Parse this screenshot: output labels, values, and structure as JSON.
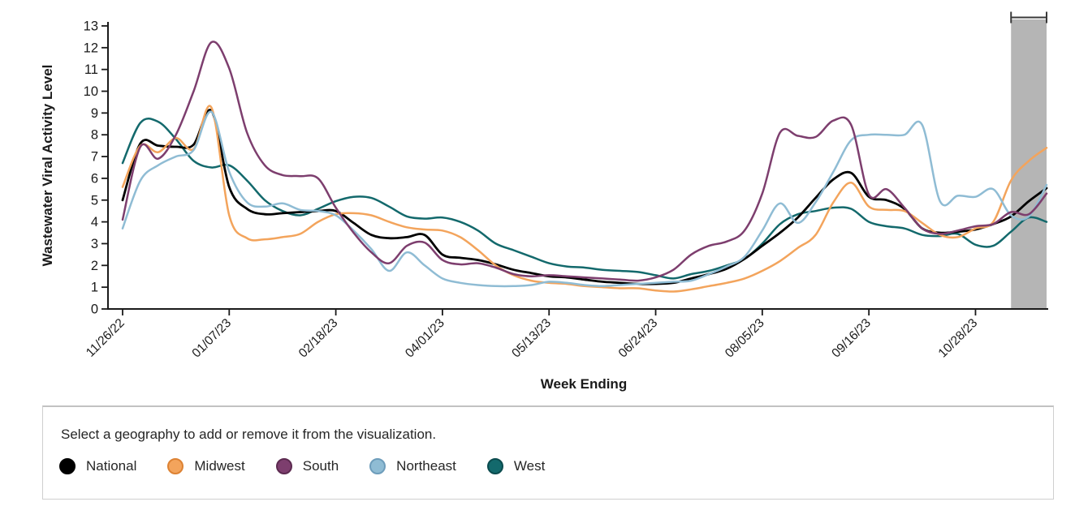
{
  "chart_data": {
    "type": "line",
    "title": "",
    "xlabel": "Week Ending",
    "ylabel": "Wastewater Viral Activity Level",
    "ylim": [
      0,
      13
    ],
    "y_tick_step": 1,
    "grid": false,
    "legend_position": "bottom",
    "x": [
      "11/26/22",
      "12/03/22",
      "12/10/22",
      "12/17/22",
      "12/24/22",
      "12/31/22",
      "01/07/23",
      "01/14/23",
      "01/21/23",
      "01/28/23",
      "02/04/23",
      "02/11/23",
      "02/18/23",
      "02/25/23",
      "03/04/23",
      "03/11/23",
      "03/18/23",
      "03/25/23",
      "04/01/23",
      "04/08/23",
      "04/15/23",
      "04/22/23",
      "04/29/23",
      "05/06/23",
      "05/13/23",
      "05/20/23",
      "05/27/23",
      "06/03/23",
      "06/10/23",
      "06/17/23",
      "06/24/23",
      "07/01/23",
      "07/08/23",
      "07/15/23",
      "07/22/23",
      "07/29/23",
      "08/05/23",
      "08/12/23",
      "08/19/23",
      "08/26/23",
      "09/02/23",
      "09/09/23",
      "09/16/23",
      "09/23/23",
      "09/30/23",
      "10/07/23",
      "10/14/23",
      "10/21/23",
      "10/28/23",
      "11/04/23",
      "11/11/23",
      "11/18/23",
      "11/25/23"
    ],
    "x_tick_labels": [
      "11/26/22",
      "01/07/23",
      "02/18/23",
      "04/01/23",
      "05/13/23",
      "06/24/23",
      "08/05/23",
      "09/16/23",
      "10/28/23"
    ],
    "x_tick_indices": [
      0,
      6,
      12,
      18,
      24,
      30,
      36,
      42,
      48
    ],
    "series": [
      {
        "name": "National",
        "color": "#000000",
        "values": [
          5.0,
          7.6,
          7.5,
          7.45,
          7.55,
          9.1,
          5.6,
          4.6,
          4.35,
          4.4,
          4.45,
          4.5,
          4.5,
          3.95,
          3.4,
          3.25,
          3.3,
          3.4,
          2.5,
          2.35,
          2.25,
          2.05,
          1.8,
          1.65,
          1.5,
          1.45,
          1.35,
          1.25,
          1.2,
          1.15,
          1.15,
          1.2,
          1.4,
          1.6,
          1.85,
          2.3,
          2.9,
          3.5,
          4.2,
          5.1,
          5.95,
          6.25,
          5.15,
          5.0,
          4.6,
          3.7,
          3.5,
          3.55,
          3.65,
          3.9,
          4.25,
          4.95,
          5.55
        ]
      },
      {
        "name": "Midwest",
        "color": "#F3A45C",
        "values": [
          5.6,
          7.5,
          7.2,
          7.85,
          7.35,
          9.25,
          4.3,
          3.25,
          3.2,
          3.3,
          3.45,
          4.0,
          4.35,
          4.4,
          4.3,
          4.0,
          3.75,
          3.65,
          3.6,
          3.3,
          2.7,
          2.0,
          1.55,
          1.3,
          1.2,
          1.15,
          1.05,
          1.0,
          0.95,
          0.95,
          0.85,
          0.8,
          0.9,
          1.05,
          1.2,
          1.4,
          1.75,
          2.2,
          2.8,
          3.4,
          4.9,
          5.8,
          4.7,
          4.55,
          4.5,
          3.95,
          3.4,
          3.3,
          3.7,
          4.0,
          5.9,
          6.8,
          7.4
        ]
      },
      {
        "name": "South",
        "color": "#7D3E6E",
        "values": [
          4.1,
          7.45,
          6.9,
          8.0,
          10.0,
          12.25,
          11.05,
          8.1,
          6.6,
          6.15,
          6.1,
          6.0,
          4.65,
          3.5,
          2.6,
          2.1,
          2.9,
          3.05,
          2.25,
          2.05,
          2.1,
          1.9,
          1.6,
          1.5,
          1.55,
          1.5,
          1.45,
          1.4,
          1.35,
          1.3,
          1.45,
          1.8,
          2.5,
          2.9,
          3.1,
          3.6,
          5.3,
          8.1,
          7.95,
          7.9,
          8.65,
          8.45,
          5.25,
          5.5,
          4.65,
          3.7,
          3.45,
          3.6,
          3.8,
          3.9,
          4.45,
          4.35,
          5.3
        ]
      },
      {
        "name": "Northeast",
        "color": "#8FBCD4",
        "values": [
          3.7,
          5.9,
          6.6,
          7.0,
          7.3,
          9.05,
          6.3,
          4.9,
          4.7,
          4.85,
          4.55,
          4.5,
          4.3,
          3.6,
          2.75,
          1.75,
          2.6,
          2.0,
          1.4,
          1.2,
          1.1,
          1.05,
          1.05,
          1.1,
          1.25,
          1.2,
          1.1,
          1.05,
          1.1,
          1.15,
          1.2,
          1.25,
          1.3,
          1.6,
          1.95,
          2.4,
          3.6,
          4.85,
          3.95,
          4.9,
          6.3,
          7.75,
          8.0,
          8.0,
          8.0,
          8.45,
          4.95,
          5.2,
          5.15,
          5.5,
          4.3,
          4.25,
          5.7
        ]
      },
      {
        "name": "West",
        "color": "#13696C",
        "values": [
          6.7,
          8.55,
          8.6,
          7.8,
          6.8,
          6.5,
          6.6,
          5.9,
          5.0,
          4.5,
          4.3,
          4.6,
          4.95,
          5.15,
          5.1,
          4.7,
          4.25,
          4.15,
          4.2,
          4.0,
          3.6,
          3.0,
          2.7,
          2.4,
          2.1,
          1.95,
          1.9,
          1.8,
          1.75,
          1.7,
          1.55,
          1.4,
          1.6,
          1.75,
          2.0,
          2.3,
          3.0,
          3.9,
          4.35,
          4.5,
          4.65,
          4.6,
          4.0,
          3.8,
          3.7,
          3.4,
          3.35,
          3.45,
          2.95,
          2.9,
          3.55,
          4.2,
          4.0
        ]
      }
    ],
    "provisional_band": {
      "from": "11/11/23",
      "to": "11/25/23",
      "fill": "#B5B5B5",
      "cap_color": "#3A3A3A"
    }
  },
  "legend": {
    "instruction": "Select a geography to add or remove it from the visualization.",
    "items": [
      {
        "label": "National",
        "fill": "#000000",
        "border": "#000000"
      },
      {
        "label": "Midwest",
        "fill": "#F3A45C",
        "border": "#DD8233"
      },
      {
        "label": "South",
        "fill": "#7D3E6E",
        "border": "#5C2A50"
      },
      {
        "label": "Northeast",
        "fill": "#8FBCD4",
        "border": "#6E9DBB"
      },
      {
        "label": "West",
        "fill": "#13696C",
        "border": "#0B4B4E"
      }
    ]
  }
}
